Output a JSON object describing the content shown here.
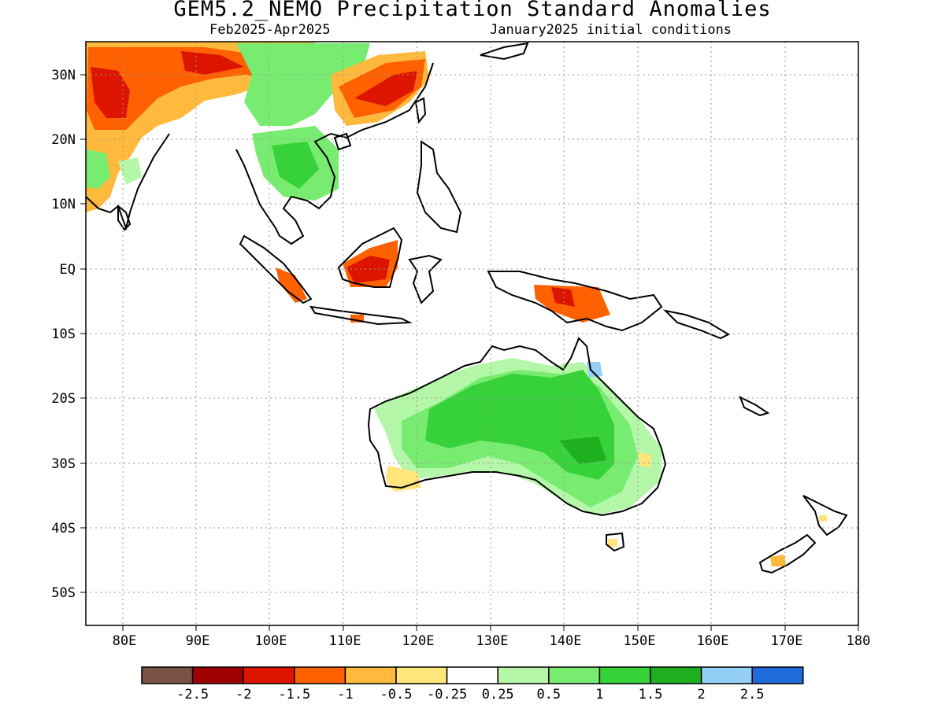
{
  "title": "GEM5.2_NEMO Precipitation Standard Anomalies",
  "subtitle_left": "Feb2025-Apr2025",
  "subtitle_right": "January2025 initial conditions",
  "map": {
    "lon_range": [
      75,
      180
    ],
    "lat_range": [
      -55,
      35
    ],
    "lat_labels": [
      "30N",
      "20N",
      "10N",
      "EQ",
      "10S",
      "20S",
      "30S",
      "40S",
      "50S"
    ],
    "lon_labels": [
      "80E",
      "90E",
      "100E",
      "110E",
      "120E",
      "130E",
      "140E",
      "150E",
      "160E",
      "170E",
      "180"
    ],
    "grid": "dotted"
  },
  "colorbar": {
    "colors": [
      "#7a5143",
      "#a00000",
      "#dd1500",
      "#ff6100",
      "#ffb93d",
      "#ffe57a",
      "#ffffff",
      "#b4f7a8",
      "#78ec70",
      "#37d13a",
      "#1fb01f",
      "#94cff7",
      "#1e6cdb"
    ],
    "labels": [
      "-2.5",
      "-2",
      "-1.5",
      "-1",
      "-0.5",
      "-0.25",
      "0.25",
      "0.5",
      "1",
      "1.5",
      "2",
      "2.5"
    ]
  }
}
